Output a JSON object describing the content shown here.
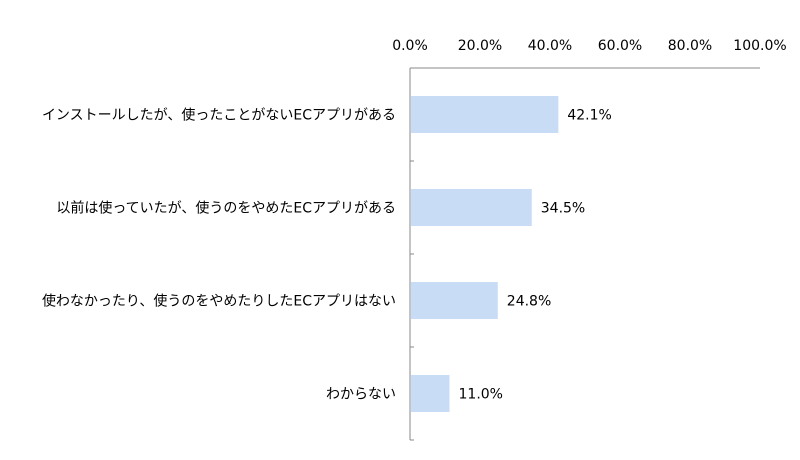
{
  "chart_data": {
    "type": "bar",
    "orientation": "horizontal",
    "categories": [
      "インストールしたが、使ったことがないECアプリがある",
      "以前は使っていたが、使うのをやめたECアプリがある",
      "使わなかったり、使うのをやめたりしたECアプリはない",
      "わからない"
    ],
    "values": [
      42.1,
      34.5,
      24.8,
      11.0
    ],
    "data_labels": [
      "42.1%",
      "34.5%",
      "24.8%",
      "11.0%"
    ],
    "xlim": [
      0,
      100
    ],
    "x_ticks": [
      0,
      20,
      40,
      60,
      80,
      100
    ],
    "x_tick_labels": [
      "0.0%",
      "20.0%",
      "40.0%",
      "60.0%",
      "80.0%",
      "100.0%"
    ],
    "x_axis_position": "top",
    "grid": false,
    "legend": "none",
    "colors": {
      "bar": "#c9dcf6",
      "axis": "#888888",
      "text": "#000000"
    }
  }
}
